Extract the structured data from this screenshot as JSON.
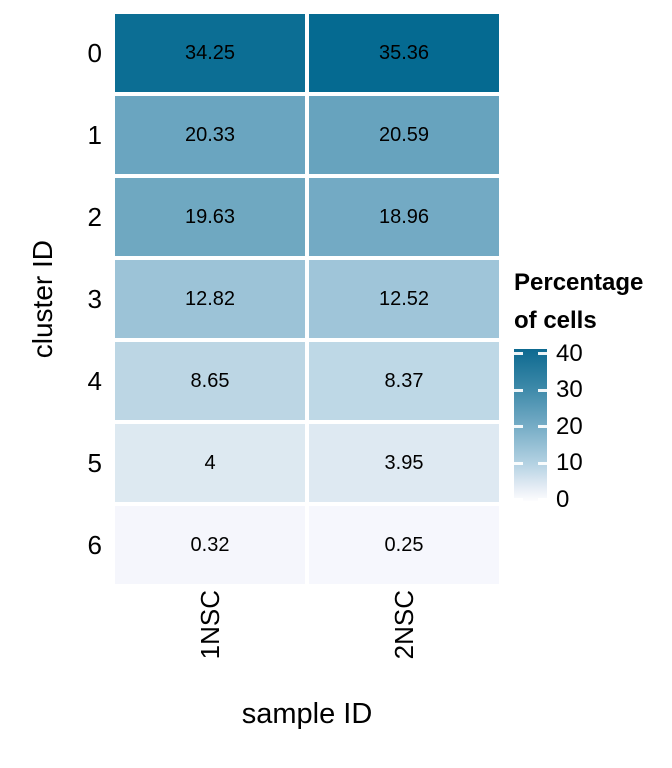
{
  "figure": {
    "background_color": "#ffffff",
    "text_color": "#000000"
  },
  "chart_data": {
    "type": "heatmap",
    "xlabel": "sample ID",
    "ylabel": "cluster ID",
    "x_categories": [
      "1NSC",
      "2NSC"
    ],
    "y_categories": [
      "0",
      "1",
      "2",
      "3",
      "4",
      "5",
      "6"
    ],
    "series": [
      {
        "name": "1NSC",
        "values": [
          34.25,
          20.33,
          19.63,
          12.82,
          8.65,
          4,
          0.32
        ],
        "colors": [
          "#0c6e94",
          "#6aa5c0",
          "#6fa8c1",
          "#9cc3d7",
          "#bcd6e4",
          "#dde9f1",
          "#f5f6fc"
        ]
      },
      {
        "name": "2NSC",
        "values": [
          35.36,
          20.59,
          18.96,
          12.52,
          8.37,
          3.95,
          0.25
        ],
        "colors": [
          "#056a91",
          "#67a3be",
          "#73aac4",
          "#9fc5d9",
          "#bed8e6",
          "#dee9f2",
          "#f6f7fd"
        ]
      }
    ],
    "cell_gap_color": "#ffffff",
    "legend": {
      "title": "Percentage of cells",
      "ticks": [
        "40",
        "30",
        "20",
        "10",
        "0"
      ],
      "range": [
        0,
        40
      ],
      "position": "right",
      "gradient_high": "#0d6990",
      "gradient_low": "#fdfdfe"
    }
  }
}
